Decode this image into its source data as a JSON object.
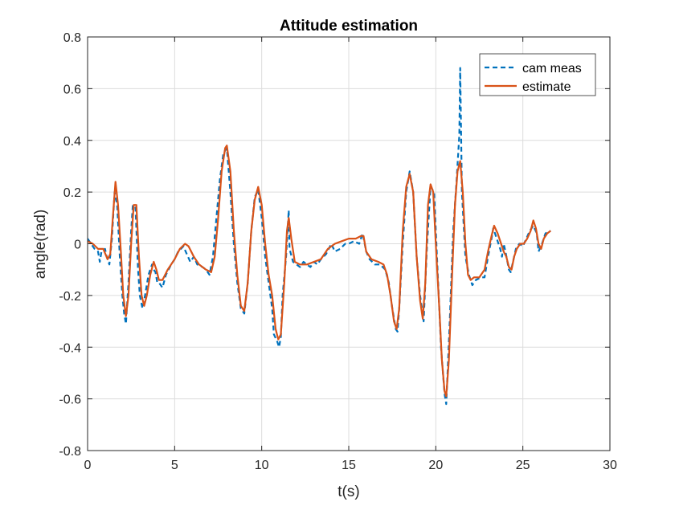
{
  "chart_data": {
    "type": "line",
    "title": "Attitude estimation",
    "xlabel": "t(s)",
    "ylabel": "angle(rad)",
    "xlim": [
      0,
      30
    ],
    "ylim": [
      -0.8,
      0.8
    ],
    "xticks": [
      0,
      5,
      10,
      15,
      20,
      25,
      30
    ],
    "yticks": [
      -0.8,
      -0.6,
      -0.4,
      -0.2,
      0,
      0.2,
      0.4,
      0.6,
      0.8
    ],
    "xtick_labels": [
      "0",
      "5",
      "10",
      "15",
      "20",
      "25",
      "30"
    ],
    "ytick_labels": [
      "-0.8",
      "-0.6",
      "-0.4",
      "-0.2",
      "0",
      "0.2",
      "0.4",
      "0.6",
      "0.8"
    ],
    "grid": true,
    "legend_position": "top-right",
    "series": [
      {
        "name": "cam meas",
        "style": "dashed",
        "color": "#0072BD",
        "points": [
          [
            0.0,
            0.02
          ],
          [
            0.2,
            0.0
          ],
          [
            0.4,
            -0.02
          ],
          [
            0.6,
            -0.03
          ],
          [
            0.7,
            -0.07
          ],
          [
            0.8,
            -0.03
          ],
          [
            1.0,
            -0.02
          ],
          [
            1.1,
            -0.05
          ],
          [
            1.25,
            -0.08
          ],
          [
            1.4,
            0.02
          ],
          [
            1.55,
            0.2
          ],
          [
            1.7,
            0.15
          ],
          [
            1.85,
            -0.05
          ],
          [
            2.0,
            -0.2
          ],
          [
            2.1,
            -0.27
          ],
          [
            2.2,
            -0.31
          ],
          [
            2.35,
            -0.15
          ],
          [
            2.5,
            0.05
          ],
          [
            2.6,
            0.15
          ],
          [
            2.75,
            0.14
          ],
          [
            2.9,
            -0.1
          ],
          [
            3.0,
            -0.2
          ],
          [
            3.15,
            -0.25
          ],
          [
            3.3,
            -0.2
          ],
          [
            3.5,
            -0.12
          ],
          [
            3.7,
            -0.08
          ],
          [
            3.8,
            -0.1
          ],
          [
            3.9,
            -0.11
          ],
          [
            4.0,
            -0.15
          ],
          [
            4.1,
            -0.15
          ],
          [
            4.3,
            -0.17
          ],
          [
            4.5,
            -0.12
          ],
          [
            4.8,
            -0.08
          ],
          [
            5.0,
            -0.06
          ],
          [
            5.2,
            -0.03
          ],
          [
            5.5,
            -0.01
          ],
          [
            5.7,
            -0.04
          ],
          [
            5.9,
            -0.07
          ],
          [
            6.1,
            -0.05
          ],
          [
            6.3,
            -0.08
          ],
          [
            6.6,
            -0.09
          ],
          [
            6.8,
            -0.1
          ],
          [
            7.0,
            -0.12
          ],
          [
            7.2,
            -0.05
          ],
          [
            7.4,
            0.1
          ],
          [
            7.6,
            0.25
          ],
          [
            7.8,
            0.35
          ],
          [
            8.0,
            0.37
          ],
          [
            8.2,
            0.2
          ],
          [
            8.4,
            0.0
          ],
          [
            8.6,
            -0.15
          ],
          [
            8.8,
            -0.25
          ],
          [
            9.0,
            -0.27
          ],
          [
            9.2,
            -0.15
          ],
          [
            9.4,
            0.05
          ],
          [
            9.6,
            0.18
          ],
          [
            9.8,
            0.21
          ],
          [
            10.0,
            0.1
          ],
          [
            10.2,
            -0.05
          ],
          [
            10.4,
            -0.15
          ],
          [
            10.6,
            -0.25
          ],
          [
            10.7,
            -0.35
          ],
          [
            10.9,
            -0.38
          ],
          [
            11.0,
            -0.4
          ],
          [
            11.1,
            -0.36
          ],
          [
            11.2,
            -0.2
          ],
          [
            11.4,
            -0.05
          ],
          [
            11.55,
            0.13
          ],
          [
            11.6,
            -0.02
          ],
          [
            11.8,
            -0.07
          ],
          [
            12.0,
            -0.08
          ],
          [
            12.2,
            -0.09
          ],
          [
            12.4,
            -0.07
          ],
          [
            12.6,
            -0.08
          ],
          [
            12.8,
            -0.09
          ],
          [
            13.0,
            -0.07
          ],
          [
            13.2,
            -0.08
          ],
          [
            13.4,
            -0.06
          ],
          [
            13.7,
            -0.04
          ],
          [
            14.0,
            0.0
          ],
          [
            14.2,
            -0.03
          ],
          [
            14.5,
            -0.02
          ],
          [
            14.8,
            0.0
          ],
          [
            15.0,
            0.0
          ],
          [
            15.3,
            0.01
          ],
          [
            15.6,
            0.0
          ],
          [
            15.8,
            0.04
          ],
          [
            16.0,
            -0.03
          ],
          [
            16.2,
            -0.06
          ],
          [
            16.5,
            -0.08
          ],
          [
            16.8,
            -0.08
          ],
          [
            17.1,
            -0.1
          ],
          [
            17.3,
            -0.15
          ],
          [
            17.5,
            -0.25
          ],
          [
            17.7,
            -0.33
          ],
          [
            17.8,
            -0.34
          ],
          [
            17.9,
            -0.25
          ],
          [
            18.1,
            0.0
          ],
          [
            18.3,
            0.2
          ],
          [
            18.5,
            0.28
          ],
          [
            18.7,
            0.2
          ],
          [
            18.9,
            -0.05
          ],
          [
            19.1,
            -0.2
          ],
          [
            19.3,
            -0.3
          ],
          [
            19.5,
            0.0
          ],
          [
            19.7,
            0.22
          ],
          [
            19.9,
            0.2
          ],
          [
            20.1,
            -0.1
          ],
          [
            20.3,
            -0.4
          ],
          [
            20.5,
            -0.58
          ],
          [
            20.6,
            -0.62
          ],
          [
            20.8,
            -0.3
          ],
          [
            21.0,
            0.05
          ],
          [
            21.2,
            0.25
          ],
          [
            21.35,
            0.42
          ],
          [
            21.4,
            0.68
          ],
          [
            21.5,
            0.2
          ],
          [
            21.7,
            -0.05
          ],
          [
            21.9,
            -0.12
          ],
          [
            22.1,
            -0.16
          ],
          [
            22.3,
            -0.14
          ],
          [
            22.6,
            -0.13
          ],
          [
            22.8,
            -0.13
          ],
          [
            23.0,
            -0.05
          ],
          [
            23.2,
            0.02
          ],
          [
            23.3,
            0.06
          ],
          [
            23.5,
            0.02
          ],
          [
            23.7,
            -0.02
          ],
          [
            23.8,
            -0.05
          ],
          [
            23.9,
            0.0
          ],
          [
            24.0,
            -0.03
          ],
          [
            24.2,
            -0.1
          ],
          [
            24.3,
            -0.11
          ],
          [
            24.5,
            -0.05
          ],
          [
            24.6,
            -0.02
          ],
          [
            24.8,
            0.0
          ],
          [
            25.0,
            -0.01
          ],
          [
            25.2,
            0.02
          ],
          [
            25.4,
            0.05
          ],
          [
            25.6,
            0.07
          ],
          [
            25.8,
            0.04
          ],
          [
            25.9,
            -0.03
          ],
          [
            26.1,
            0.0
          ],
          [
            26.3,
            0.04
          ],
          [
            26.6,
            0.05
          ]
        ]
      },
      {
        "name": "estimate",
        "style": "solid",
        "color": "#D95319",
        "points": [
          [
            0.0,
            0.01
          ],
          [
            0.3,
            0.0
          ],
          [
            0.6,
            -0.02
          ],
          [
            0.9,
            -0.02
          ],
          [
            1.15,
            -0.06
          ],
          [
            1.3,
            -0.04
          ],
          [
            1.45,
            0.1
          ],
          [
            1.6,
            0.24
          ],
          [
            1.75,
            0.15
          ],
          [
            1.9,
            -0.02
          ],
          [
            2.05,
            -0.2
          ],
          [
            2.2,
            -0.28
          ],
          [
            2.35,
            -0.2
          ],
          [
            2.5,
            0.0
          ],
          [
            2.65,
            0.15
          ],
          [
            2.8,
            0.15
          ],
          [
            2.95,
            -0.05
          ],
          [
            3.1,
            -0.2
          ],
          [
            3.25,
            -0.24
          ],
          [
            3.4,
            -0.2
          ],
          [
            3.6,
            -0.12
          ],
          [
            3.8,
            -0.07
          ],
          [
            3.95,
            -0.1
          ],
          [
            4.1,
            -0.14
          ],
          [
            4.3,
            -0.14
          ],
          [
            4.6,
            -0.1
          ],
          [
            5.0,
            -0.06
          ],
          [
            5.3,
            -0.02
          ],
          [
            5.6,
            0.0
          ],
          [
            5.8,
            -0.01
          ],
          [
            6.1,
            -0.05
          ],
          [
            6.4,
            -0.08
          ],
          [
            6.8,
            -0.1
          ],
          [
            7.1,
            -0.11
          ],
          [
            7.3,
            -0.05
          ],
          [
            7.5,
            0.1
          ],
          [
            7.7,
            0.28
          ],
          [
            7.9,
            0.37
          ],
          [
            8.0,
            0.38
          ],
          [
            8.2,
            0.28
          ],
          [
            8.4,
            0.05
          ],
          [
            8.6,
            -0.12
          ],
          [
            8.8,
            -0.24
          ],
          [
            9.0,
            -0.26
          ],
          [
            9.2,
            -0.15
          ],
          [
            9.4,
            0.05
          ],
          [
            9.6,
            0.17
          ],
          [
            9.8,
            0.22
          ],
          [
            10.0,
            0.15
          ],
          [
            10.2,
            0.0
          ],
          [
            10.4,
            -0.12
          ],
          [
            10.6,
            -0.2
          ],
          [
            10.8,
            -0.33
          ],
          [
            10.95,
            -0.37
          ],
          [
            11.1,
            -0.35
          ],
          [
            11.3,
            -0.15
          ],
          [
            11.45,
            0.05
          ],
          [
            11.55,
            0.1
          ],
          [
            11.7,
            0.02
          ],
          [
            11.9,
            -0.07
          ],
          [
            12.2,
            -0.08
          ],
          [
            12.6,
            -0.08
          ],
          [
            13.0,
            -0.07
          ],
          [
            13.4,
            -0.06
          ],
          [
            13.8,
            -0.02
          ],
          [
            14.2,
            0.0
          ],
          [
            14.6,
            0.01
          ],
          [
            15.0,
            0.02
          ],
          [
            15.4,
            0.02
          ],
          [
            15.7,
            0.03
          ],
          [
            15.85,
            0.03
          ],
          [
            16.0,
            -0.03
          ],
          [
            16.3,
            -0.06
          ],
          [
            16.7,
            -0.07
          ],
          [
            17.0,
            -0.08
          ],
          [
            17.2,
            -0.12
          ],
          [
            17.4,
            -0.2
          ],
          [
            17.6,
            -0.3
          ],
          [
            17.75,
            -0.33
          ],
          [
            17.9,
            -0.25
          ],
          [
            18.1,
            0.05
          ],
          [
            18.3,
            0.22
          ],
          [
            18.5,
            0.27
          ],
          [
            18.7,
            0.2
          ],
          [
            18.9,
            -0.05
          ],
          [
            19.1,
            -0.22
          ],
          [
            19.25,
            -0.29
          ],
          [
            19.4,
            -0.15
          ],
          [
            19.55,
            0.15
          ],
          [
            19.7,
            0.23
          ],
          [
            19.85,
            0.2
          ],
          [
            20.0,
            0.0
          ],
          [
            20.2,
            -0.25
          ],
          [
            20.35,
            -0.45
          ],
          [
            20.5,
            -0.57
          ],
          [
            20.6,
            -0.59
          ],
          [
            20.75,
            -0.45
          ],
          [
            20.95,
            -0.1
          ],
          [
            21.1,
            0.15
          ],
          [
            21.25,
            0.28
          ],
          [
            21.4,
            0.32
          ],
          [
            21.55,
            0.2
          ],
          [
            21.7,
            0.0
          ],
          [
            21.85,
            -0.12
          ],
          [
            22.0,
            -0.14
          ],
          [
            22.2,
            -0.13
          ],
          [
            22.5,
            -0.13
          ],
          [
            22.8,
            -0.1
          ],
          [
            23.0,
            -0.03
          ],
          [
            23.2,
            0.03
          ],
          [
            23.35,
            0.07
          ],
          [
            23.55,
            0.04
          ],
          [
            23.75,
            0.0
          ],
          [
            23.9,
            -0.03
          ],
          [
            24.05,
            -0.05
          ],
          [
            24.2,
            -0.09
          ],
          [
            24.35,
            -0.1
          ],
          [
            24.5,
            -0.05
          ],
          [
            24.65,
            -0.02
          ],
          [
            24.85,
            0.0
          ],
          [
            25.05,
            0.0
          ],
          [
            25.25,
            0.02
          ],
          [
            25.45,
            0.05
          ],
          [
            25.6,
            0.09
          ],
          [
            25.75,
            0.06
          ],
          [
            25.9,
            0.0
          ],
          [
            26.05,
            -0.02
          ],
          [
            26.2,
            0.02
          ],
          [
            26.4,
            0.04
          ],
          [
            26.6,
            0.05
          ]
        ]
      }
    ]
  }
}
